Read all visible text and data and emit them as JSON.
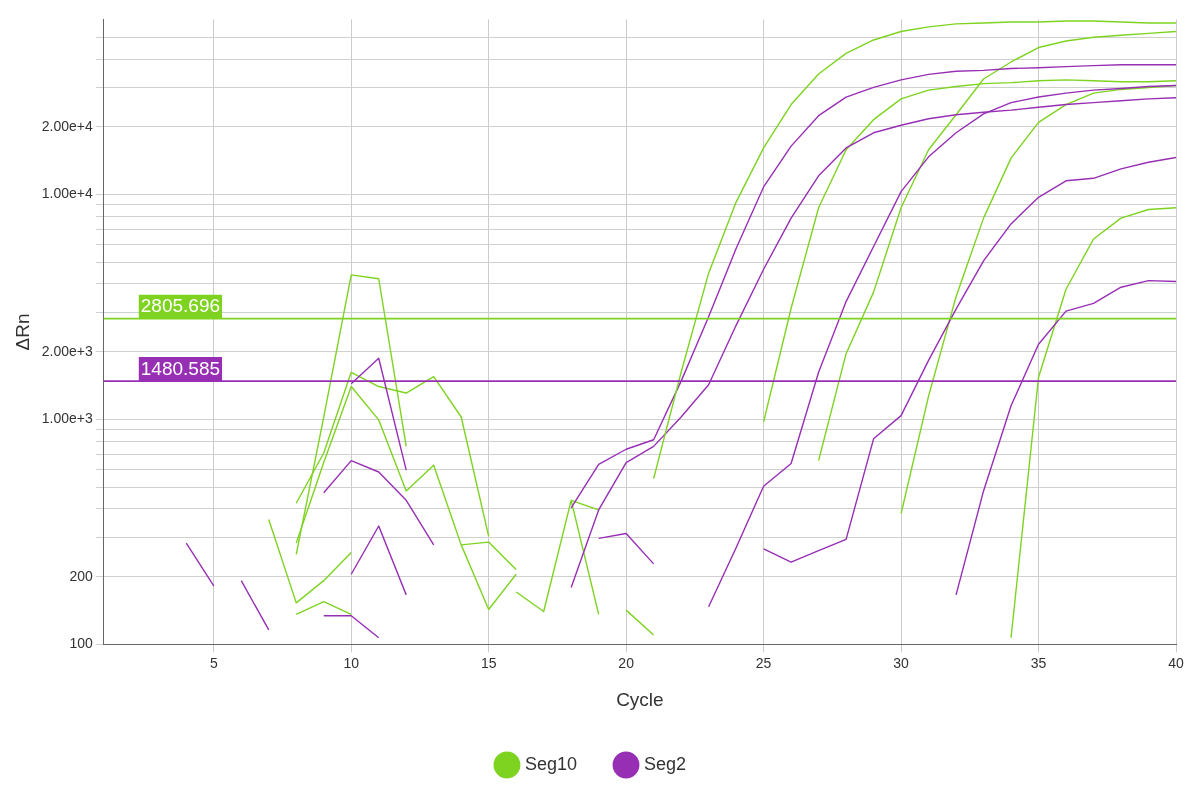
{
  "chart_data": {
    "type": "line",
    "xlabel": "Cycle",
    "ylabel": "ΔRn",
    "log": "y",
    "xlim": [
      1,
      40
    ],
    "xticks": [
      5,
      10,
      15,
      20,
      25,
      30,
      35,
      40
    ],
    "ylim": [
      100,
      60000
    ],
    "yticks": [
      100,
      200,
      {
        "value": 300,
        "label": null
      },
      {
        "value": 400,
        "label": null
      },
      {
        "value": 500,
        "label": null
      },
      {
        "value": 600,
        "label": null
      },
      {
        "value": 700,
        "label": null
      },
      {
        "value": 800,
        "label": null
      },
      {
        "value": 900,
        "label": null
      },
      {
        "value": 1000,
        "label": "1.00e+3"
      },
      {
        "value": 2000,
        "label": "2.00e+3"
      },
      {
        "value": 3000,
        "label": null
      },
      {
        "value": 4000,
        "label": null
      },
      {
        "value": 5000,
        "label": null
      },
      {
        "value": 6000,
        "label": null
      },
      {
        "value": 7000,
        "label": null
      },
      {
        "value": 8000,
        "label": null
      },
      {
        "value": 9000,
        "label": null
      },
      {
        "value": 10000,
        "label": "1.00e+4"
      },
      {
        "value": 20000,
        "label": "2.00e+4"
      },
      {
        "value": 30000,
        "label": null
      },
      {
        "value": 40000,
        "label": null
      },
      {
        "value": 50000,
        "label": null
      }
    ],
    "grid": true,
    "legend": "bottom",
    "marker": "none",
    "line_style": "solid",
    "ref_lines": [
      {
        "axis": "y",
        "value": 2805.696,
        "label": "2805.696",
        "color": "#7ed321"
      },
      {
        "axis": "y",
        "value": 1480.585,
        "label": "1480.585",
        "color": "#972fb5"
      }
    ],
    "series": [
      {
        "name": "Seg10",
        "color": "#7ed321",
        "x": [
          21,
          22,
          23,
          24,
          25,
          26,
          27,
          28,
          29,
          30,
          31,
          32,
          33,
          34,
          35,
          36,
          37,
          38,
          39,
          40
        ],
        "values": [
          546,
          1620,
          4470,
          9250,
          16100,
          25100,
          34300,
          42400,
          48600,
          53000,
          55600,
          57300,
          57800,
          58400,
          58400,
          59000,
          59000,
          58400,
          57800,
          57800
        ]
      },
      {
        "name": "Seg2",
        "color": "#972fb5",
        "x": [
          18,
          19,
          20,
          21,
          22,
          23,
          24,
          25,
          26,
          27,
          28,
          29,
          30,
          31,
          32,
          33,
          34,
          35,
          36,
          37,
          38,
          39,
          40
        ],
        "values": [
          404,
          631,
          737,
          812,
          1480,
          2860,
          5750,
          10800,
          16400,
          22400,
          27100,
          29900,
          32300,
          34200,
          35300,
          35600,
          36300,
          36600,
          37000,
          37400,
          37700,
          37700,
          37700
        ]
      },
      {
        "color": "#972fb5",
        "x": [
          18,
          19,
          20,
          21,
          22,
          23,
          24,
          25,
          26,
          27,
          28,
          29,
          30,
          31,
          32,
          33,
          34,
          35,
          36,
          37,
          38,
          39,
          40
        ],
        "values": [
          179,
          396,
          643,
          759,
          1025,
          1425,
          2620,
          4650,
          7850,
          12100,
          16100,
          18800,
          20300,
          21700,
          22600,
          23200,
          23700,
          24400,
          25100,
          25600,
          26100,
          26600,
          26900
        ]
      },
      {
        "color": "#972fb5",
        "x": [
          23,
          24,
          25,
          26,
          27,
          28,
          29,
          30,
          31,
          32,
          33,
          34,
          35,
          36,
          37,
          38,
          39,
          40
        ],
        "values": [
          147,
          269,
          505,
          637,
          1620,
          3340,
          5870,
          10300,
          14700,
          18800,
          22800,
          25600,
          27100,
          28200,
          29100,
          29600,
          30200,
          30500
        ]
      },
      {
        "color": "#972fb5",
        "x": [
          25,
          26,
          27,
          28,
          29,
          30,
          31,
          32,
          33,
          34,
          35,
          36,
          37,
          38,
          39,
          40
        ],
        "values": [
          266,
          232,
          261,
          293,
          820,
          1040,
          1830,
          3090,
          5070,
          7400,
          9710,
          11500,
          11800,
          13000,
          13900,
          14600
        ]
      },
      {
        "color": "#972fb5",
        "x": [
          32,
          33,
          34,
          35,
          36,
          37,
          38,
          39,
          40
        ],
        "values": [
          166,
          481,
          1150,
          2160,
          3030,
          3280,
          3870,
          4140,
          4100
        ]
      },
      {
        "color": "#972fb5",
        "x": [
          19,
          20,
          21
        ],
        "values": [
          296,
          311,
          228
        ]
      },
      {
        "color": "#972fb5",
        "x": [
          4,
          5
        ],
        "values": [
          282,
          182
        ]
      },
      {
        "color": "#972fb5",
        "x": [
          6,
          7
        ],
        "values": [
          192,
          116
        ]
      },
      {
        "color": "#972fb5",
        "x": [
          9,
          10,
          11,
          12,
          13
        ],
        "values": [
          472,
          656,
          584,
          437,
          277
        ]
      },
      {
        "color": "#972fb5",
        "x": [
          10,
          11,
          12
        ],
        "values": [
          1440,
          1870,
          595
        ]
      },
      {
        "color": "#972fb5",
        "x": [
          10,
          11,
          12
        ],
        "values": [
          205,
          336,
          166
        ]
      },
      {
        "color": "#972fb5",
        "x": [
          9,
          10,
          11
        ],
        "values": [
          134,
          134,
          107
        ]
      },
      {
        "color": "#7ed321",
        "x": [
          25,
          26,
          27,
          28,
          29,
          30,
          31,
          32,
          33,
          34,
          35,
          36,
          37,
          38,
          39,
          40
        ],
        "values": [
          976,
          3120,
          8730,
          15800,
          21500,
          26600,
          29100,
          30200,
          31100,
          31400,
          32000,
          32300,
          32000,
          31700,
          31700,
          32000
        ]
      },
      {
        "color": "#7ed321",
        "x": [
          27,
          28,
          29,
          30,
          31,
          32,
          33,
          34,
          35,
          36,
          37,
          38,
          39,
          40
        ],
        "values": [
          656,
          1960,
          3680,
          8730,
          15800,
          22600,
          32600,
          38800,
          45000,
          48100,
          50000,
          51000,
          52000,
          53000
        ]
      },
      {
        "color": "#7ed321",
        "x": [
          30,
          31,
          32,
          33,
          34,
          35,
          36,
          37,
          38,
          39,
          40
        ],
        "values": [
          381,
          1270,
          3510,
          7850,
          14500,
          20900,
          25100,
          28200,
          29300,
          29900,
          30500
        ]
      },
      {
        "color": "#7ed321",
        "x": [
          34,
          35,
          36,
          37,
          38,
          39,
          40
        ],
        "values": [
          107,
          1540,
          3790,
          6340,
          7850,
          8570,
          8730
        ]
      },
      {
        "color": "#7ed321",
        "x": [
          20,
          21
        ],
        "values": [
          142,
          110
        ]
      },
      {
        "color": "#7ed321",
        "x": [
          8,
          9,
          10,
          11,
          12
        ],
        "values": [
          251,
          1025,
          4390,
          4220,
          759
        ]
      },
      {
        "color": "#7ed321",
        "x": [
          8,
          9,
          10,
          11,
          12,
          13,
          14,
          15
        ],
        "values": [
          424,
          709,
          1620,
          1400,
          1310,
          1550,
          1025,
          302
        ]
      },
      {
        "color": "#7ed321",
        "x": [
          8,
          9,
          10,
          11,
          12,
          13,
          14,
          15,
          16
        ],
        "values": [
          282,
          643,
          1400,
          995,
          481,
          625,
          277,
          143,
          205
        ]
      },
      {
        "color": "#7ed321",
        "x": [
          14,
          15,
          16
        ],
        "values": [
          277,
          285,
          215
        ]
      },
      {
        "color": "#7ed321",
        "x": [
          16,
          17,
          18,
          19
        ],
        "values": [
          171,
          140,
          437,
          136
        ]
      },
      {
        "color": "#7ed321",
        "x": [
          18,
          19
        ],
        "values": [
          437,
          396
        ]
      },
      {
        "color": "#7ed321",
        "x": [
          7,
          8,
          9,
          10
        ],
        "values": [
          359,
          153,
          192,
          256
        ]
      },
      {
        "color": "#7ed321",
        "x": [
          8,
          9,
          10
        ],
        "values": [
          136,
          155,
          136
        ]
      }
    ]
  }
}
